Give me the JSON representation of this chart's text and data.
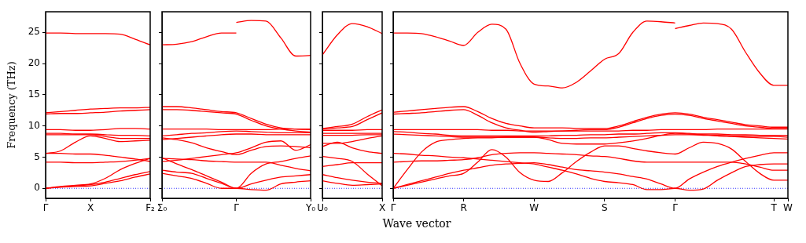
{
  "chart_data": [
    {
      "type": "line",
      "ylabel": "Frequency (THz)",
      "categories": [
        "Γ",
        null,
        null,
        "X",
        null,
        null,
        null,
        "F₂"
      ],
      "ylim": [
        -1.6,
        28.3
      ],
      "yticks": [
        0,
        5,
        10,
        15,
        20,
        25
      ],
      "ref_lines": [
        {
          "axis": "y",
          "value": 0,
          "color": "#0000ff",
          "line_style": "dotted"
        }
      ],
      "series": [
        {
          "color": "#ff0000",
          "values": [
            24.9,
            24.9,
            24.8,
            24.8,
            24.8,
            24.7,
            23.9,
            23.0
          ]
        },
        {
          "color": "#ff0000",
          "values": [
            12.1,
            12.3,
            12.5,
            12.7,
            12.8,
            12.9,
            12.9,
            13.0
          ]
        },
        {
          "color": "#ff0000",
          "values": [
            11.9,
            12.0,
            12.0,
            12.1,
            12.2,
            12.4,
            12.5,
            12.6
          ]
        },
        {
          "color": "#ff0000",
          "values": [
            9.4,
            9.4,
            9.3,
            9.3,
            9.4,
            9.6,
            9.6,
            9.5
          ]
        },
        {
          "color": "#ff0000",
          "values": [
            8.8,
            8.8,
            8.7,
            8.7,
            8.6,
            8.5,
            8.5,
            8.4
          ]
        },
        {
          "color": "#ff0000",
          "values": [
            8.6,
            8.6,
            8.6,
            8.6,
            8.3,
            8.0,
            8.0,
            8.0
          ]
        },
        {
          "color": "#ff0000",
          "values": [
            5.6,
            6.0,
            7.4,
            8.4,
            8.0,
            7.5,
            7.6,
            7.7
          ]
        },
        {
          "color": "#ff0000",
          "values": [
            5.6,
            5.6,
            5.5,
            5.5,
            5.3,
            5.0,
            4.7,
            4.3
          ]
        },
        {
          "color": "#ff0000",
          "values": [
            4.2,
            4.2,
            4.1,
            4.1,
            4.2,
            4.3,
            4.5,
            4.8
          ]
        },
        {
          "color": "#ff0000",
          "values": [
            0,
            0.3,
            0.5,
            0.7,
            1.6,
            3.0,
            4.0,
            4.8
          ]
        },
        {
          "color": "#ff0000",
          "values": [
            0,
            0.2,
            0.4,
            0.6,
            1.0,
            1.6,
            2.2,
            2.7
          ]
        },
        {
          "color": "#ff0000",
          "values": [
            0,
            0.2,
            0.3,
            0.4,
            0.8,
            1.2,
            1.8,
            2.3
          ]
        }
      ]
    },
    {
      "type": "line",
      "tick_labels": "x",
      "categories": [
        "Σ₀",
        null,
        null,
        null,
        null,
        "Γ",
        null,
        null,
        null,
        null,
        "Y₀"
      ],
      "ylim": [
        -1.6,
        28.3
      ],
      "yticks": [
        {
          "value": 0,
          "label": null
        },
        {
          "value": 5,
          "label": null
        },
        {
          "value": 10,
          "label": null
        },
        {
          "value": 15,
          "label": null
        },
        {
          "value": 20,
          "label": null
        },
        {
          "value": 25,
          "label": null
        }
      ],
      "ref_lines": [
        {
          "axis": "y",
          "value": 0,
          "color": "#0000ff",
          "line_style": "dotted"
        }
      ],
      "series": [
        {
          "color": "#ff0000",
          "values": [
            23.0,
            23.1,
            23.5,
            24.3,
            24.9,
            24.9,
            null,
            null,
            null,
            null,
            null
          ]
        },
        {
          "color": "#ff0000",
          "values": [
            null,
            null,
            null,
            null,
            null,
            26.6,
            26.9,
            26.8,
            24.1,
            21.2,
            21.3
          ]
        },
        {
          "color": "#ff0000",
          "values": [
            13.1,
            13.1,
            12.9,
            12.6,
            12.3,
            12.1,
            11.2,
            10.3,
            9.7,
            9.5,
            9.4
          ]
        },
        {
          "color": "#ff0000",
          "values": [
            12.6,
            12.6,
            12.5,
            12.3,
            12.1,
            11.9,
            10.9,
            10.0,
            9.5,
            9.2,
            9.0
          ]
        },
        {
          "color": "#ff0000",
          "values": [
            9.5,
            9.5,
            9.5,
            9.5,
            9.4,
            9.4,
            9.4,
            9.4,
            9.5,
            9.5,
            9.5
          ]
        },
        {
          "color": "#ff0000",
          "values": [
            8.4,
            8.6,
            8.8,
            8.9,
            9.1,
            9.2,
            9.1,
            9.0,
            8.9,
            8.9,
            8.9
          ]
        },
        {
          "color": "#ff0000",
          "values": [
            7.8,
            8.0,
            8.2,
            8.4,
            8.6,
            8.7,
            8.7,
            8.6,
            8.6,
            8.6,
            8.6
          ]
        },
        {
          "color": "#ff0000",
          "values": [
            4.3,
            4.5,
            4.8,
            5.1,
            5.4,
            5.7,
            6.5,
            7.4,
            7.6,
            6.1,
            7.0
          ]
        },
        {
          "color": "#ff0000",
          "values": [
            4.8,
            4.7,
            4.6,
            4.4,
            4.3,
            4.2,
            4.2,
            4.2,
            3.7,
            3.2,
            2.8
          ]
        },
        {
          "color": "#ff0000",
          "values": [
            8.1,
            7.8,
            7.3,
            6.5,
            5.9,
            5.4,
            6.1,
            6.7,
            6.8,
            6.7,
            6.5
          ]
        },
        {
          "color": "#ff0000",
          "values": [
            4.9,
            3.9,
            3.0,
            2.0,
            1.0,
            0,
            2.4,
            3.9,
            4.3,
            4.8,
            5.2
          ]
        },
        {
          "color": "#ff0000",
          "values": [
            2.9,
            2.6,
            2.4,
            1.6,
            0.8,
            0,
            0.7,
            1.3,
            1.8,
            2.0,
            2.2
          ]
        },
        {
          "color": "#ff0000",
          "values": [
            2.4,
            2.0,
            1.6,
            0.8,
            0,
            0,
            -0.2,
            -0.3,
            0.7,
            1.0,
            1.2
          ]
        }
      ]
    },
    {
      "type": "line",
      "tick_labels": "x",
      "categories": [
        "U₀",
        null,
        null,
        null,
        "X"
      ],
      "ylim": [
        -1.6,
        28.3
      ],
      "yticks": [
        {
          "value": 0,
          "label": null
        },
        {
          "value": 5,
          "label": null
        },
        {
          "value": 10,
          "label": null
        },
        {
          "value": 15,
          "label": null
        },
        {
          "value": 20,
          "label": null
        },
        {
          "value": 25,
          "label": null
        }
      ],
      "ref_lines": [
        {
          "axis": "y",
          "value": 0,
          "color": "#0000ff",
          "line_style": "dotted"
        }
      ],
      "series": [
        {
          "color": "#ff0000",
          "values": [
            21.4,
            24.6,
            26.4,
            25.9,
            24.8
          ]
        },
        {
          "color": "#ff0000",
          "values": [
            9.6,
            9.9,
            10.3,
            11.5,
            12.6
          ]
        },
        {
          "color": "#ff0000",
          "values": [
            9.5,
            9.7,
            9.9,
            11.0,
            12.1
          ]
        },
        {
          "color": "#ff0000",
          "values": [
            9.3,
            9.3,
            9.3,
            9.4,
            9.4
          ]
        },
        {
          "color": "#ff0000",
          "values": [
            8.8,
            8.8,
            8.8,
            8.8,
            8.8
          ]
        },
        {
          "color": "#ff0000",
          "values": [
            8.5,
            8.5,
            8.5,
            8.6,
            8.6
          ]
        },
        {
          "color": "#ff0000",
          "values": [
            6.7,
            7.4,
            6.5,
            5.9,
            5.6
          ]
        },
        {
          "color": "#ff0000",
          "values": [
            7.2,
            7.2,
            7.5,
            8.0,
            8.4
          ]
        },
        {
          "color": "#ff0000",
          "values": [
            5.1,
            4.8,
            4.3,
            2.3,
            0.4
          ]
        },
        {
          "color": "#ff0000",
          "values": [
            3.5,
            3.8,
            4.1,
            4.1,
            4.1
          ]
        },
        {
          "color": "#ff0000",
          "values": [
            2.2,
            1.7,
            1.3,
            1.0,
            0.8
          ]
        },
        {
          "color": "#ff0000",
          "values": [
            1.2,
            0.8,
            0.5,
            0.6,
            0.7
          ]
        }
      ]
    },
    {
      "type": "line",
      "tick_labels": "x",
      "xlabel": "Wave vector",
      "categories": [
        "Γ",
        null,
        null,
        null,
        null,
        "R",
        null,
        null,
        null,
        null,
        "W",
        null,
        null,
        null,
        null,
        "S",
        null,
        null,
        null,
        null,
        "Γ",
        null,
        null,
        null,
        null,
        null,
        null,
        "T",
        "W"
      ],
      "ylim": [
        -1.6,
        28.3
      ],
      "yticks": [
        {
          "value": 0,
          "label": null
        },
        {
          "value": 5,
          "label": null
        },
        {
          "value": 10,
          "label": null
        },
        {
          "value": 15,
          "label": null
        },
        {
          "value": 20,
          "label": null
        },
        {
          "value": 25,
          "label": null
        }
      ],
      "ref_lines": [
        {
          "axis": "y",
          "value": 0,
          "color": "#0000ff",
          "line_style": "dotted"
        }
      ],
      "series": [
        {
          "color": "#ff0000",
          "values": [
            24.9,
            24.9,
            24.8,
            24.3,
            23.6,
            22.9,
            25.0,
            26.3,
            25.5,
            20.0,
            16.7,
            16.4,
            16.1,
            17.0,
            18.8,
            20.7,
            21.6,
            25.0,
            26.8,
            26.7,
            26.5,
            null,
            null,
            null,
            null,
            null,
            null,
            null,
            null
          ]
        },
        {
          "color": "#ff0000",
          "values": [
            null,
            null,
            null,
            null,
            null,
            null,
            null,
            null,
            null,
            null,
            null,
            null,
            null,
            null,
            null,
            null,
            null,
            null,
            null,
            null,
            25.6,
            26.1,
            26.5,
            26.4,
            25.5,
            21.8,
            18.5,
            16.5,
            16.5
          ]
        },
        {
          "color": "#ff0000",
          "values": [
            12.2,
            12.4,
            12.6,
            12.8,
            13.0,
            13.1,
            12.3,
            11.2,
            10.4,
            10.0,
            9.7,
            9.7,
            9.7,
            9.6,
            9.6,
            9.6,
            10.0,
            10.7,
            11.4,
            11.9,
            12.1,
            11.9,
            11.4,
            11.0,
            10.6,
            10.2,
            10.0,
            9.8,
            9.8
          ]
        },
        {
          "color": "#ff0000",
          "values": [
            11.9,
            12.0,
            12.1,
            12.3,
            12.5,
            12.6,
            11.7,
            10.5,
            9.7,
            9.3,
            9.0,
            9.1,
            9.2,
            9.3,
            9.4,
            9.4,
            9.8,
            10.5,
            11.2,
            11.7,
            11.9,
            11.7,
            11.2,
            10.8,
            10.4,
            10.0,
            9.8,
            9.6,
            9.6
          ]
        },
        {
          "color": "#ff0000",
          "values": [
            9.4,
            9.4,
            9.4,
            9.4,
            9.4,
            9.4,
            9.4,
            9.3,
            9.3,
            9.2,
            9.2,
            9.2,
            9.2,
            9.2,
            9.2,
            9.2,
            9.2,
            9.3,
            9.3,
            9.4,
            9.4,
            9.4,
            9.4,
            9.5,
            9.5,
            9.5,
            9.5,
            9.5,
            9.5
          ]
        },
        {
          "color": "#ff0000",
          "values": [
            9.1,
            9.0,
            8.8,
            8.7,
            8.5,
            8.4,
            8.4,
            8.4,
            8.4,
            8.4,
            8.4,
            8.4,
            8.5,
            8.5,
            8.6,
            8.6,
            8.7,
            8.7,
            8.8,
            8.9,
            8.9,
            8.8,
            8.7,
            8.7,
            8.6,
            8.6,
            8.5,
            8.5,
            8.5
          ]
        },
        {
          "color": "#ff0000",
          "values": [
            8.7,
            8.6,
            8.5,
            8.4,
            8.3,
            8.2,
            8.2,
            8.2,
            8.2,
            8.2,
            8.2,
            7.8,
            7.2,
            7.1,
            7.1,
            7.1,
            7.3,
            7.6,
            8.0,
            8.5,
            8.8,
            8.7,
            8.6,
            8.4,
            8.3,
            8.2,
            8.1,
            8.0,
            7.9
          ]
        },
        {
          "color": "#ff0000",
          "values": [
            0,
            3.0,
            5.8,
            7.4,
            7.8,
            8.0,
            8.1,
            8.1,
            8.2,
            8.2,
            8.2,
            8.1,
            8.0,
            8.0,
            8.1,
            8.1,
            8.2,
            8.3,
            8.4,
            8.5,
            8.6,
            8.6,
            8.5,
            8.5,
            8.4,
            8.4,
            8.3,
            8.3,
            8.2
          ]
        },
        {
          "color": "#ff0000",
          "values": [
            0,
            0.6,
            1.2,
            1.8,
            2.4,
            2.9,
            3.3,
            3.7,
            3.9,
            4.0,
            4.1,
            3.8,
            3.4,
            3.0,
            2.8,
            2.6,
            2.3,
            1.9,
            1.5,
            0.7,
            0,
            1.5,
            2.6,
            3.5,
            4.2,
            4.8,
            5.3,
            5.7,
            5.7
          ]
        },
        {
          "color": "#ff0000",
          "values": [
            0,
            0.5,
            1.0,
            1.5,
            2.0,
            2.4,
            4.2,
            6.2,
            5.0,
            2.5,
            1.3,
            1.1,
            2.5,
            4.3,
            5.8,
            6.8,
            6.8,
            6.4,
            6.0,
            5.7,
            5.5,
            6.5,
            7.4,
            7.2,
            6.3,
            4.3,
            2.4,
            1.3,
            1.3
          ]
        },
        {
          "color": "#ff0000",
          "values": [
            5.6,
            5.5,
            5.3,
            5.2,
            5.0,
            4.9,
            4.7,
            4.5,
            4.3,
            4.1,
            3.9,
            3.4,
            2.9,
            2.3,
            1.6,
            1.1,
            0.9,
            0.6,
            -0.2,
            -0.2,
            0,
            -0.3,
            -0.1,
            1.3,
            2.5,
            3.5,
            3.8,
            3.9,
            3.9
          ]
        },
        {
          "color": "#ff0000",
          "values": [
            4.2,
            4.3,
            4.4,
            4.4,
            4.5,
            4.6,
            4.9,
            5.4,
            5.6,
            5.7,
            5.7,
            5.6,
            5.5,
            5.4,
            5.2,
            5.1,
            4.8,
            4.4,
            4.2,
            4.2,
            4.2,
            4.2,
            4.2,
            4.2,
            4.2,
            3.9,
            3.4,
            2.9,
            2.9
          ]
        }
      ]
    }
  ]
}
